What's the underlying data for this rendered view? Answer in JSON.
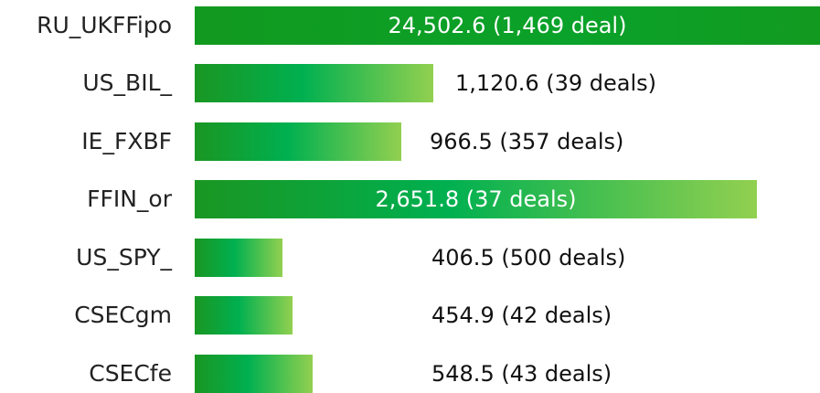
{
  "rows": [
    {
      "name": "RU_UKFFipo",
      "text": "24,502.6 (1,469 deal)"
    },
    {
      "name": "US_BIL_",
      "text": "1,120.6 (39 deals)"
    },
    {
      "name": "IE_FXBF",
      "text": "966.5 (357 deals)"
    },
    {
      "name": "FFIN_or",
      "text": "2,651.8 (37 deals)"
    },
    {
      "name": "US_SPY_",
      "text": "406.5 (500 deals)"
    },
    {
      "name": "CSECgm",
      "text": "454.9 (42 deals)"
    },
    {
      "name": "CSECfe",
      "text": "548.5 (43 deals)"
    }
  ]
}
